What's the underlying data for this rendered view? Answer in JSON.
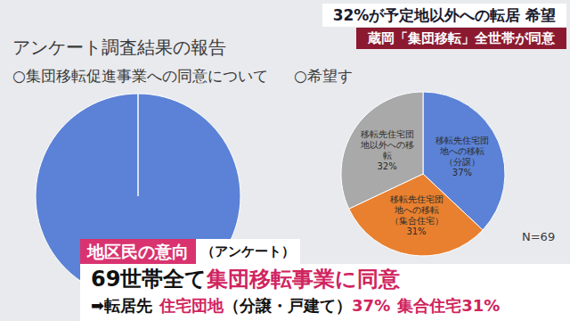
{
  "banner": {
    "headline": "32%が予定地以外への転居 希望",
    "subhead": "蔵岡「集団移転」全世帯が同意"
  },
  "document": {
    "heading": "アンケート調査結果の報告"
  },
  "chart_data": [
    {
      "type": "pie",
      "title": "○集団移転促進事業への同意について",
      "categories": [
        null
      ],
      "values": [
        100
      ],
      "colors": [
        "#5b82d6"
      ]
    },
    {
      "type": "pie",
      "title": "○希望す",
      "categories": [
        "移転先住宅団地への移転（分譲）",
        "移転先住宅団地への移転（集合住宅）",
        "移転先住宅団地以外への移転"
      ],
      "values": [
        37,
        31,
        32
      ],
      "value_labels": [
        "37%",
        "31%",
        "32%"
      ],
      "colors": [
        "#5b82d6",
        "#e8802f",
        "#a9a9a9"
      ],
      "data_labels": true,
      "annotation": "N=69"
    }
  ],
  "caption": {
    "tag": "地区民の意向",
    "tag_note": "（アンケート）",
    "lines": [
      [
        {
          "text": "69世帯全て",
          "color": "#111111"
        },
        {
          "text": "集団移転事業に同意",
          "color": "#d0245e"
        }
      ],
      [
        {
          "text": "➡",
          "color": "#111111"
        },
        {
          "text": "転居先",
          "color": "#111111"
        },
        {
          "text": "住宅団地",
          "color": "#d0245e"
        },
        {
          "text": "（分譲・戸建て）",
          "color": "#111111"
        },
        {
          "text": "37%",
          "color": "#d0245e"
        },
        {
          "text": "集合住宅",
          "color": "#d0245e"
        },
        {
          "text": "31%",
          "color": "#d0245e"
        }
      ]
    ]
  }
}
